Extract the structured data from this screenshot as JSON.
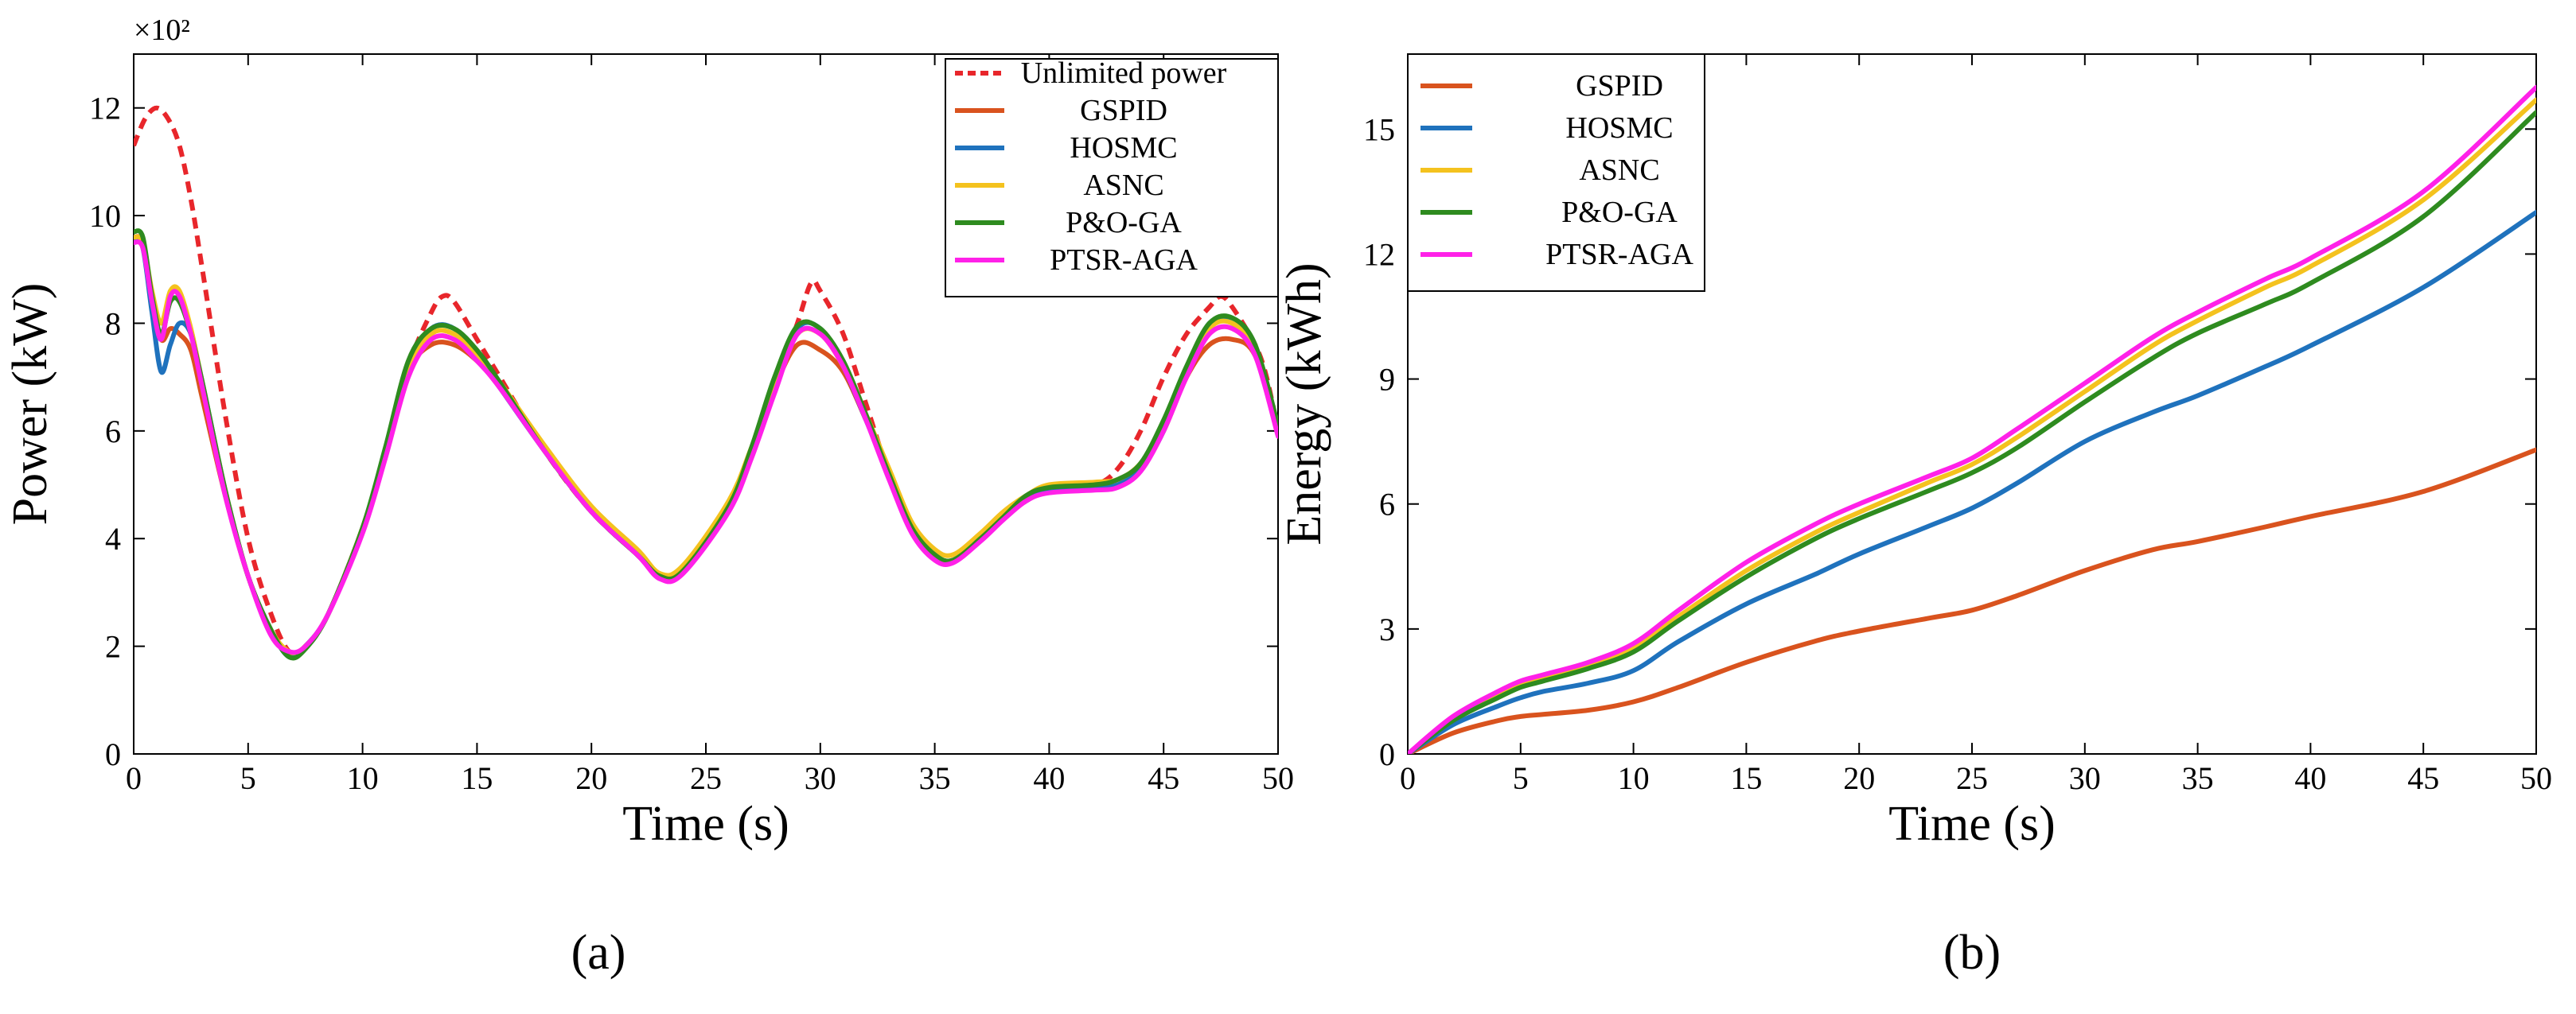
{
  "figure_labels": [
    "(a)",
    "(b)"
  ],
  "chart_data": [
    {
      "type": "line",
      "title": "",
      "xlabel": "Time (s)",
      "ylabel": "Power (kW)",
      "y_multiplier_label": "×10²",
      "xlim": [
        0,
        50
      ],
      "ylim": [
        0,
        13
      ],
      "xticks": [
        0,
        5,
        10,
        15,
        20,
        25,
        30,
        35,
        40,
        45,
        50
      ],
      "yticks": [
        0,
        2,
        4,
        6,
        8,
        10,
        12
      ],
      "grid": false,
      "legend_position": "top-right",
      "series": [
        {
          "name": "Unlimited power",
          "color": "#e8262b",
          "dash": true,
          "x": [
            0,
            0.5,
            1,
            1.5,
            2,
            2.5,
            3,
            4,
            5,
            6,
            6.8,
            7.5,
            8.5,
            10,
            11,
            12,
            13,
            13.5,
            14,
            15,
            16,
            18,
            20,
            22,
            23,
            24,
            26,
            27,
            28,
            29,
            29.6,
            30,
            31,
            32,
            33,
            34,
            35,
            35.8,
            37,
            38,
            39,
            40,
            42,
            43,
            44,
            45,
            46,
            47,
            47.5,
            48,
            49,
            49.5,
            50
          ],
          "y": [
            11.3,
            11.8,
            12.0,
            11.8,
            11.3,
            10.3,
            9.0,
            6.3,
            4.0,
            2.6,
            1.9,
            2.0,
            2.6,
            4.2,
            5.6,
            7.2,
            8.2,
            8.5,
            8.4,
            7.7,
            7.0,
            5.6,
            4.5,
            3.7,
            3.3,
            3.4,
            4.6,
            5.6,
            6.8,
            8.0,
            8.75,
            8.6,
            7.8,
            6.5,
            5.2,
            4.2,
            3.7,
            3.6,
            4.0,
            4.4,
            4.7,
            4.9,
            5.0,
            5.3,
            6.0,
            7.0,
            7.8,
            8.3,
            8.5,
            8.3,
            7.6,
            7.0,
            6.0
          ]
        },
        {
          "name": "GSPID",
          "color": "#d9531e",
          "dash": false,
          "x": [
            0,
            0.4,
            0.8,
            1.2,
            1.6,
            2,
            2.5,
            3,
            4,
            5,
            6,
            6.8,
            7.5,
            8.5,
            10,
            11,
            12,
            13,
            14,
            15,
            16,
            18,
            20,
            22,
            23,
            24,
            26,
            27,
            28,
            29,
            30,
            31,
            32,
            33,
            34,
            35,
            35.8,
            37,
            38,
            39,
            40,
            42,
            43,
            44,
            45,
            46,
            47,
            48,
            49,
            50
          ],
          "y": [
            9.6,
            9.5,
            8.5,
            7.7,
            7.9,
            7.8,
            7.5,
            6.6,
            4.8,
            3.3,
            2.3,
            1.85,
            2.0,
            2.6,
            4.2,
            5.6,
            7.1,
            7.6,
            7.6,
            7.3,
            6.8,
            5.6,
            4.5,
            3.7,
            3.3,
            3.4,
            4.6,
            5.6,
            6.8,
            7.6,
            7.5,
            7.1,
            6.2,
            5.2,
            4.2,
            3.7,
            3.6,
            4.0,
            4.4,
            4.7,
            4.9,
            4.95,
            5.0,
            5.3,
            6.0,
            7.0,
            7.6,
            7.7,
            7.4,
            6.0
          ]
        },
        {
          "name": "HOSMC",
          "color": "#1f72bd",
          "dash": false,
          "x": [
            0,
            0.4,
            0.8,
            1.2,
            1.6,
            2,
            2.5,
            3,
            4,
            5,
            6,
            6.8,
            7.5,
            8.5,
            10,
            11,
            12,
            13,
            14,
            15,
            16,
            18,
            20,
            22,
            23,
            24,
            26,
            27,
            28,
            29,
            30,
            31,
            32,
            33,
            34,
            35,
            35.8,
            37,
            38,
            39,
            40,
            42,
            43,
            44,
            45,
            46,
            47,
            48,
            49,
            50
          ],
          "y": [
            9.6,
            9.4,
            8.2,
            7.1,
            7.6,
            8.0,
            7.8,
            6.9,
            4.9,
            3.3,
            2.3,
            1.8,
            2.0,
            2.6,
            4.2,
            5.6,
            7.2,
            7.9,
            7.9,
            7.4,
            6.8,
            5.6,
            4.5,
            3.7,
            3.3,
            3.4,
            4.6,
            5.6,
            6.8,
            7.9,
            7.9,
            7.2,
            6.2,
            5.2,
            4.2,
            3.7,
            3.6,
            4.0,
            4.4,
            4.7,
            4.9,
            4.95,
            5.0,
            5.3,
            6.0,
            7.1,
            8.0,
            8.0,
            7.5,
            6.0
          ]
        },
        {
          "name": "ASNC",
          "color": "#f4c21e",
          "dash": false,
          "x": [
            0,
            0.4,
            0.8,
            1.2,
            1.6,
            2,
            2.5,
            3,
            4,
            5,
            6,
            6.8,
            7.5,
            8.5,
            10,
            11,
            12,
            13,
            14,
            15,
            16,
            18,
            20,
            22,
            23,
            24,
            26,
            27,
            28,
            29,
            30,
            31,
            32,
            33,
            34,
            35,
            35.8,
            37,
            38,
            39,
            40,
            42,
            43,
            44,
            45,
            46,
            47,
            48,
            49,
            50
          ],
          "y": [
            9.6,
            9.5,
            8.6,
            8.0,
            8.6,
            8.6,
            7.9,
            6.9,
            4.9,
            3.3,
            2.3,
            1.9,
            2.0,
            2.6,
            4.2,
            5.6,
            7.1,
            7.8,
            7.8,
            7.4,
            6.9,
            5.7,
            4.6,
            3.8,
            3.35,
            3.5,
            4.7,
            5.7,
            6.8,
            7.8,
            7.8,
            7.2,
            6.3,
            5.3,
            4.3,
            3.8,
            3.7,
            4.1,
            4.5,
            4.8,
            5.0,
            5.05,
            5.1,
            5.4,
            6.1,
            7.0,
            7.9,
            8.0,
            7.5,
            6.0
          ]
        },
        {
          "name": "P&O-GA",
          "color": "#2e8b1f",
          "dash": false,
          "x": [
            0,
            0.4,
            0.8,
            1.2,
            1.6,
            2,
            2.5,
            3,
            4,
            5,
            6,
            6.8,
            7.5,
            8.5,
            10,
            11,
            12,
            13,
            14,
            15,
            16,
            18,
            20,
            22,
            23,
            24,
            26,
            27,
            28,
            29,
            30,
            31,
            32,
            33,
            34,
            35,
            35.8,
            37,
            38,
            39,
            40,
            42,
            43,
            44,
            45,
            46,
            47,
            48,
            49,
            50
          ],
          "y": [
            9.7,
            9.6,
            8.5,
            7.8,
            8.4,
            8.4,
            7.8,
            6.9,
            4.9,
            3.3,
            2.3,
            1.8,
            1.95,
            2.6,
            4.2,
            5.7,
            7.3,
            7.9,
            7.9,
            7.5,
            6.9,
            5.6,
            4.5,
            3.7,
            3.3,
            3.4,
            4.6,
            5.7,
            7.0,
            7.95,
            7.9,
            7.3,
            6.3,
            5.2,
            4.2,
            3.7,
            3.6,
            4.0,
            4.4,
            4.8,
            4.95,
            5.0,
            5.1,
            5.4,
            6.2,
            7.2,
            8.0,
            8.1,
            7.6,
            6.1
          ]
        },
        {
          "name": "PTSR-AGA",
          "color": "#ff21e8",
          "dash": false,
          "x": [
            0,
            0.4,
            0.8,
            1.2,
            1.6,
            2,
            2.5,
            3,
            4,
            5,
            6,
            6.8,
            7.5,
            8.5,
            10,
            11,
            12,
            13,
            14,
            15,
            16,
            18,
            20,
            22,
            23,
            24,
            26,
            27,
            28,
            29,
            30,
            31,
            32,
            33,
            34,
            35,
            35.8,
            37,
            38,
            39,
            40,
            42,
            43,
            44,
            45,
            46,
            47,
            48,
            49,
            50
          ],
          "y": [
            9.5,
            9.4,
            8.4,
            7.7,
            8.5,
            8.5,
            7.8,
            6.8,
            4.8,
            3.3,
            2.2,
            1.9,
            2.0,
            2.6,
            4.1,
            5.5,
            7.0,
            7.7,
            7.7,
            7.3,
            6.8,
            5.6,
            4.5,
            3.7,
            3.25,
            3.35,
            4.5,
            5.5,
            6.7,
            7.8,
            7.8,
            7.2,
            6.2,
            5.1,
            4.1,
            3.6,
            3.55,
            3.95,
            4.35,
            4.7,
            4.85,
            4.9,
            4.95,
            5.25,
            6.0,
            7.0,
            7.8,
            7.9,
            7.4,
            5.9
          ]
        }
      ]
    },
    {
      "type": "line",
      "title": "",
      "xlabel": "Time (s)",
      "ylabel": "Energy (kWh)",
      "xlim": [
        0,
        50
      ],
      "ylim": [
        0,
        16.8
      ],
      "xticks": [
        0,
        5,
        10,
        15,
        20,
        25,
        30,
        35,
        40,
        45,
        50
      ],
      "yticks": [
        0,
        3,
        6,
        9,
        12,
        15
      ],
      "grid": false,
      "legend_position": "top-left",
      "series": [
        {
          "name": "GSPID",
          "color": "#d9531e",
          "dash": false,
          "x": [
            0,
            2,
            4,
            5,
            6,
            8,
            10,
            12,
            15,
            18,
            20,
            23,
            25,
            27,
            30,
            33,
            35,
            38,
            40,
            45,
            50
          ],
          "y": [
            0,
            0.5,
            0.8,
            0.9,
            0.95,
            1.05,
            1.25,
            1.6,
            2.2,
            2.7,
            2.95,
            3.25,
            3.45,
            3.8,
            4.4,
            4.9,
            5.1,
            5.45,
            5.7,
            6.3,
            7.3
          ]
        },
        {
          "name": "HOSMC",
          "color": "#1f72bd",
          "dash": false,
          "x": [
            0,
            2,
            4,
            5,
            6,
            8,
            10,
            12,
            15,
            18,
            20,
            23,
            25,
            27,
            30,
            33,
            35,
            38,
            40,
            45,
            50
          ],
          "y": [
            0,
            0.7,
            1.15,
            1.35,
            1.5,
            1.7,
            2.0,
            2.7,
            3.6,
            4.3,
            4.8,
            5.45,
            5.9,
            6.5,
            7.5,
            8.2,
            8.6,
            9.3,
            9.8,
            11.2,
            13.0
          ]
        },
        {
          "name": "ASNC",
          "color": "#f4c21e",
          "dash": false,
          "x": [
            0,
            2,
            4,
            5,
            6,
            8,
            10,
            12,
            15,
            18,
            20,
            23,
            25,
            27,
            30,
            33,
            35,
            38,
            40,
            45,
            50
          ],
          "y": [
            0,
            0.85,
            1.4,
            1.65,
            1.8,
            2.1,
            2.55,
            3.3,
            4.4,
            5.3,
            5.8,
            6.5,
            6.95,
            7.6,
            8.7,
            9.8,
            10.4,
            11.2,
            11.7,
            13.3,
            15.7
          ]
        },
        {
          "name": "P&O-GA",
          "color": "#2e8b1f",
          "dash": false,
          "x": [
            0,
            2,
            4,
            5,
            6,
            8,
            10,
            12,
            15,
            18,
            20,
            23,
            25,
            27,
            30,
            33,
            35,
            38,
            40,
            45,
            50
          ],
          "y": [
            0,
            0.8,
            1.35,
            1.6,
            1.75,
            2.05,
            2.45,
            3.2,
            4.25,
            5.15,
            5.65,
            6.3,
            6.75,
            7.35,
            8.45,
            9.5,
            10.1,
            10.8,
            11.3,
            12.9,
            15.4
          ]
        },
        {
          "name": "PTSR-AGA",
          "color": "#ff21e8",
          "dash": false,
          "x": [
            0,
            2,
            4,
            5,
            6,
            8,
            10,
            12,
            15,
            18,
            20,
            23,
            25,
            27,
            30,
            33,
            35,
            38,
            40,
            45,
            50
          ],
          "y": [
            0,
            0.9,
            1.5,
            1.75,
            1.9,
            2.2,
            2.65,
            3.45,
            4.6,
            5.5,
            6.0,
            6.65,
            7.1,
            7.8,
            8.9,
            10.0,
            10.6,
            11.4,
            11.9,
            13.5,
            16.0
          ]
        }
      ]
    }
  ]
}
